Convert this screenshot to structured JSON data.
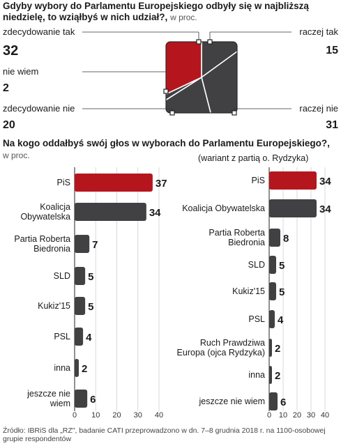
{
  "question1": {
    "title_line1": "Gdyby wybory do Parlamentu Europejskiego odbyły się w najbliższą",
    "title_line2": "niedzielę, to wziąłbyś w nich udział?,",
    "unit": "w proc."
  },
  "question2": {
    "title": "Na kogo oddałbyś swój głos w wyborach do Parlamentu Europejskiego?,",
    "unit": "w proc.",
    "variant_note": "(wariant z partią o. Rydzyka)"
  },
  "source": "Źródło: IBRiS dla „RZ\", badanie CATI przeprowadzono w dn. 7–8 grudnia 2018 r. na 1100-osobowej grupie respondentów",
  "colors": {
    "accent": "#b5161e",
    "dark": "#414042",
    "grid": "#d0d0d0"
  },
  "chart_data": [
    {
      "type": "pie",
      "categories": [
        "zdecydowanie tak",
        "raczej tak",
        "raczej nie",
        "zdecydowanie nie",
        "nie wiem"
      ],
      "values": [
        32,
        15,
        31,
        20,
        2
      ],
      "value_labels": [
        "32",
        "15",
        "31",
        "20",
        "2"
      ]
    },
    {
      "type": "bar",
      "orientation": "horizontal",
      "categories": [
        "PiS",
        "Koalicja Obywatelska",
        "Partia Roberta Biedronia",
        "SLD",
        "Kukiz'15",
        "PSL",
        "inna",
        "jeszcze nie wiem"
      ],
      "category_lines": [
        [
          "PiS"
        ],
        [
          "Koalicja",
          "Obywatelska"
        ],
        [
          "Partia Roberta",
          "Biedronia"
        ],
        [
          "SLD"
        ],
        [
          "Kukiz'15"
        ],
        [
          "PSL"
        ],
        [
          "inna"
        ],
        [
          "jeszcze nie",
          "wiem"
        ]
      ],
      "values": [
        37,
        34,
        7,
        5,
        5,
        4,
        2,
        6
      ],
      "xlim": [
        0,
        40
      ],
      "ticks": [
        "0",
        "10",
        "20",
        "30",
        "40"
      ],
      "grid": true
    },
    {
      "type": "bar",
      "orientation": "horizontal",
      "categories": [
        "PiS",
        "Koalicja Obywatelska",
        "Partia Roberta Biedronia",
        "SLD",
        "Kukiz'15",
        "PSL",
        "Ruch Prawdziwa Europa (ojca Rydzyka)",
        "inna",
        "jeszcze nie wiem"
      ],
      "category_lines": [
        [
          "PiS"
        ],
        [
          "Koalicja Obywatelska"
        ],
        [
          "Partia Roberta",
          "Biedronia"
        ],
        [
          "SLD"
        ],
        [
          "Kukiz'15"
        ],
        [
          "PSL"
        ],
        [
          "Ruch Prawdziwa",
          "Europa (ojca Rydzyka)"
        ],
        [
          "inna"
        ],
        [
          "jeszcze nie wiem"
        ]
      ],
      "values": [
        34,
        34,
        8,
        5,
        5,
        4,
        2,
        2,
        6
      ],
      "xlim": [
        0,
        40
      ],
      "ticks": [
        "0",
        "10",
        "20",
        "30",
        "40"
      ],
      "grid": true
    }
  ]
}
